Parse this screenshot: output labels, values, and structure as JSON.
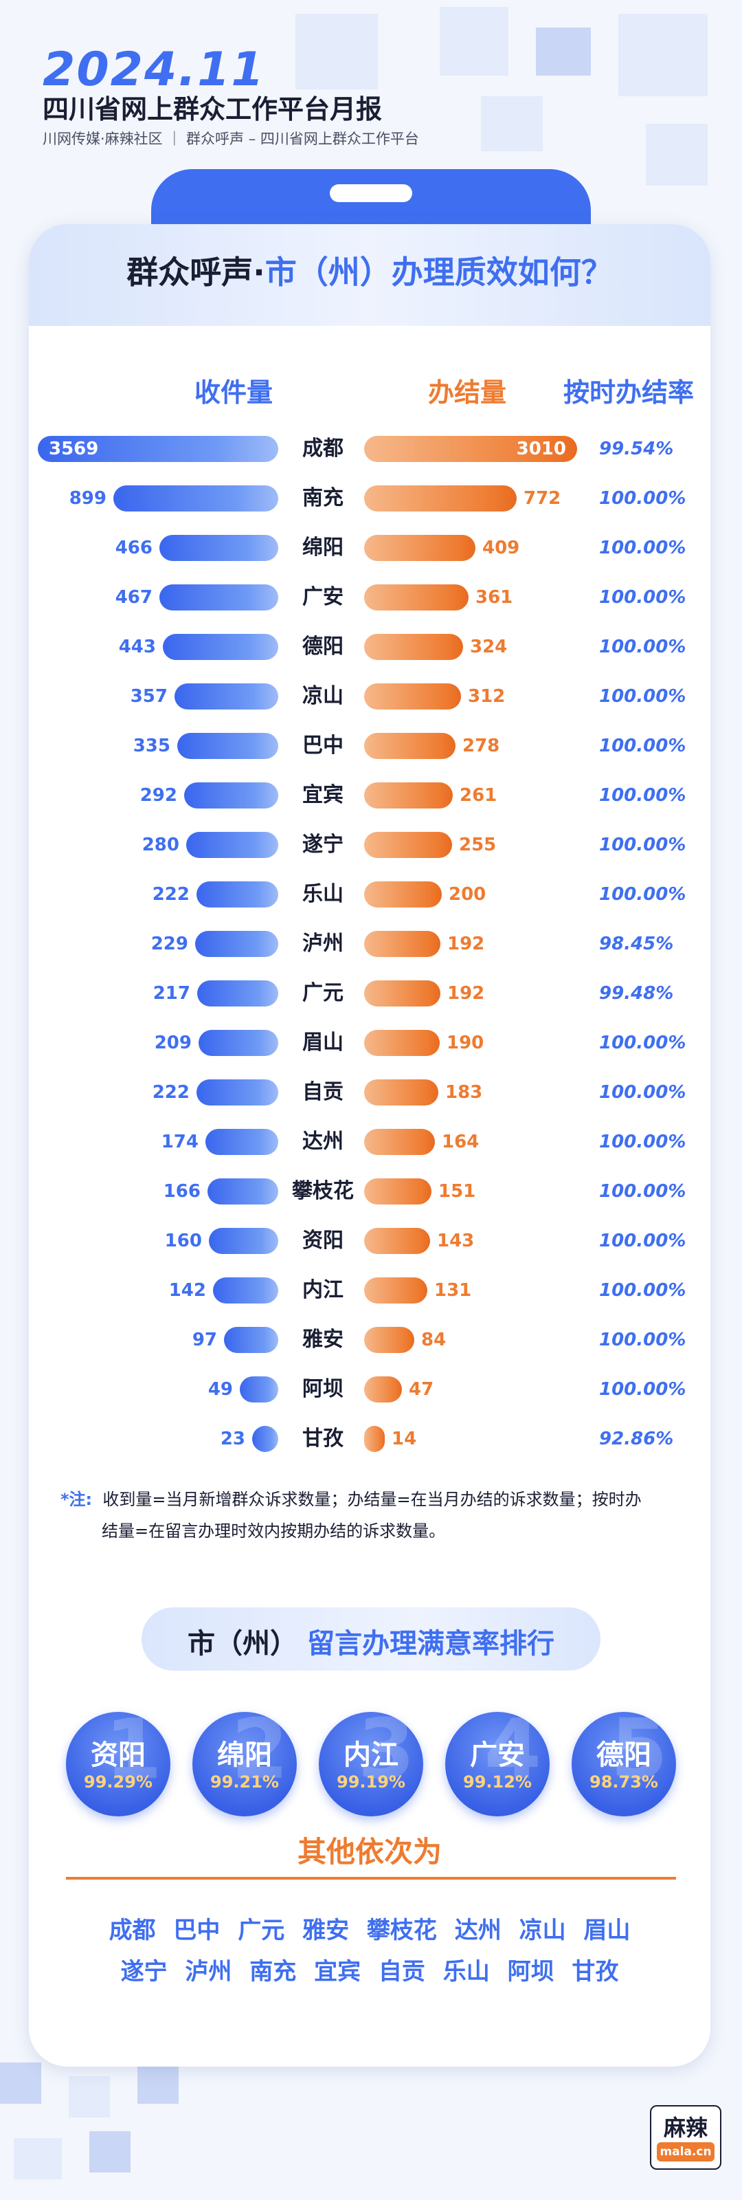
{
  "header": {
    "year": "2024.11",
    "title": "四川省网上群众工作平台月报",
    "subtitle": "川网传媒·麻辣社区 ｜ 群众呼声 – 四川省网上群众工作平台"
  },
  "card": {
    "title_part1": "群众呼声·",
    "title_part2": "市（州）办理质效如何？",
    "col_received": "收件量",
    "col_completed": "办结量",
    "col_ontime": "按时办结率"
  },
  "colors": {
    "accent_blue": "#3f6ff0",
    "accent_orange": "#ee7b30"
  },
  "chart_data": {
    "type": "bar",
    "categories": [
      "成都",
      "南充",
      "绵阳",
      "广安",
      "德阳",
      "凉山",
      "巴中",
      "宜宾",
      "遂宁",
      "乐山",
      "泸州",
      "广元",
      "眉山",
      "自贡",
      "达州",
      "攀枝花",
      "资阳",
      "内江",
      "雅安",
      "阿坝",
      "甘孜"
    ],
    "series": [
      {
        "name": "收件量",
        "values": [
          3569,
          899,
          466,
          467,
          443,
          357,
          335,
          292,
          280,
          222,
          229,
          217,
          209,
          222,
          174,
          166,
          160,
          142,
          97,
          49,
          23
        ]
      },
      {
        "name": "办结量",
        "values": [
          3010,
          772,
          409,
          361,
          324,
          312,
          278,
          261,
          255,
          200,
          192,
          192,
          190,
          183,
          164,
          151,
          143,
          131,
          84,
          47,
          14
        ]
      }
    ],
    "rates": [
      "99.54%",
      "100.00%",
      "100.00%",
      "100.00%",
      "100.00%",
      "100.00%",
      "100.00%",
      "100.00%",
      "100.00%",
      "100.00%",
      "98.45%",
      "99.48%",
      "100.00%",
      "100.00%",
      "100.00%",
      "100.00%",
      "100.00%",
      "100.00%",
      "100.00%",
      "100.00%",
      "92.86%"
    ]
  },
  "note": {
    "label": "*注:",
    "line1": "收到量=当月新增群众诉求数量；办结量=在当月办结的诉求数量；按时办",
    "line2": "结量=在留言办理时效内按期办结的诉求数量。"
  },
  "satisfaction": {
    "title_part1": "市（州）",
    "title_part2": "留言办理满意率排行",
    "top5": [
      {
        "rank": "1",
        "name": "资阳",
        "pct": "99.29%"
      },
      {
        "rank": "2",
        "name": "绵阳",
        "pct": "99.21%"
      },
      {
        "rank": "3",
        "name": "内江",
        "pct": "99.19%"
      },
      {
        "rank": "4",
        "name": "广安",
        "pct": "99.12%"
      },
      {
        "rank": "5",
        "name": "德阳",
        "pct": "98.73%"
      }
    ],
    "others_title": "其他依次为",
    "others_line1": "成都 巴中 广元 雅安 攀枝花 达州 凉山 眉山",
    "others_line2": "遂宁 泸州 南充 宜宾 自贡 乐山 阿坝 甘孜"
  },
  "logo": {
    "text": "麻辣",
    "sub": "mala.cn"
  }
}
